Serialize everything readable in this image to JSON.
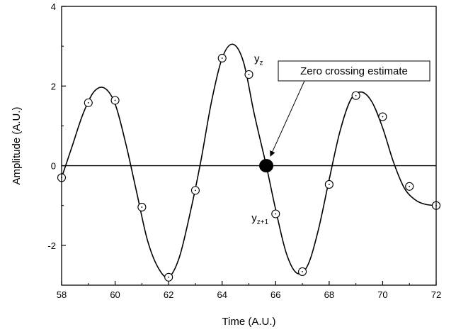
{
  "chart_data": {
    "type": "line",
    "title": "",
    "xlabel": "Time (A.U.)",
    "ylabel": "Amplitude (A.U.)",
    "xlim": [
      58,
      72
    ],
    "ylim": [
      -3,
      4
    ],
    "xticks": [
      58,
      60,
      62,
      64,
      66,
      68,
      70,
      72
    ],
    "yticks": [
      -2,
      0,
      2,
      4
    ],
    "grid": false,
    "legend": "none",
    "series": [
      {
        "kind": "interpolated-curve",
        "x": [
          58,
          58.4,
          58.8,
          59.2,
          59.6,
          60.0,
          60.4,
          60.8,
          61.2,
          61.6,
          62.0,
          62.4,
          62.8,
          63.2,
          63.6,
          64.0,
          64.4,
          64.8,
          65.2,
          65.65,
          66.0,
          66.4,
          66.8,
          67.2,
          67.6,
          68.0,
          68.4,
          68.8,
          69.2,
          69.6,
          70.0,
          70.4,
          70.8,
          71.2,
          71.6,
          72.0
        ],
        "y": [
          -0.3,
          0.5,
          1.3,
          1.85,
          1.95,
          1.55,
          0.55,
          -0.65,
          -1.85,
          -2.55,
          -2.8,
          -2.3,
          -1.2,
          0.1,
          1.6,
          2.7,
          3.05,
          2.6,
          1.3,
          0.0,
          -1.1,
          -2.2,
          -2.7,
          -2.5,
          -1.6,
          -0.35,
          0.85,
          1.65,
          1.85,
          1.6,
          0.95,
          0.1,
          -0.55,
          -0.85,
          -0.97,
          -1.0
        ]
      },
      {
        "kind": "samples",
        "x": [
          58,
          59,
          60,
          61,
          62,
          63,
          64,
          65,
          66,
          67,
          68,
          69,
          70,
          71,
          72
        ],
        "y": [
          -0.3,
          1.58,
          1.64,
          -1.04,
          -2.8,
          -0.62,
          2.7,
          2.29,
          -1.21,
          -2.66,
          -0.47,
          1.76,
          1.23,
          -0.52,
          -1.0
        ]
      },
      {
        "kind": "zero-crossing",
        "x": [
          65.65
        ],
        "y": [
          0
        ]
      }
    ],
    "reference_line": {
      "y": 0
    },
    "annotations": {
      "yz": {
        "main": "y",
        "sub": "z",
        "x": 65.2,
        "y": 2.6
      },
      "yz1": {
        "main": "y",
        "sub": "z+1",
        "x": 65.1,
        "y": -1.4
      },
      "callout": {
        "text": "Zero crossing estimate",
        "x": 65.7,
        "y": 0.1
      }
    },
    "colors": {
      "line": "#000000",
      "marker_fill": "#ffffff",
      "zero_marker": "#000000"
    }
  }
}
